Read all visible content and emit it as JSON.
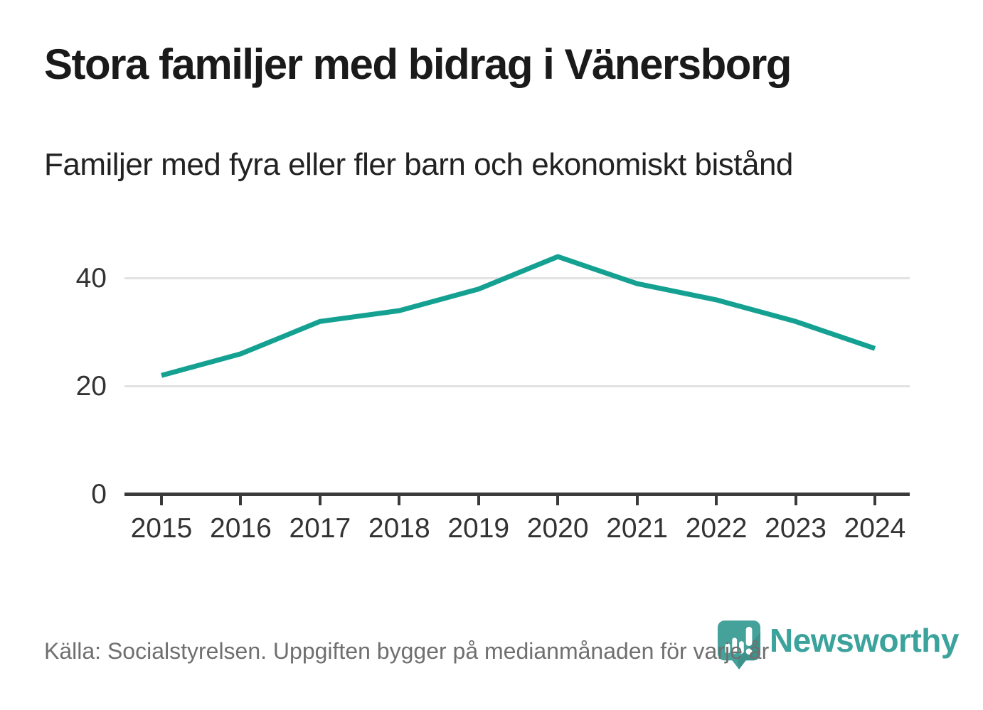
{
  "header": {
    "title": "Stora familjer med bidrag i Vänersborg",
    "subtitle": "Familjer med fyra eller fler barn och ekonomiskt bistånd"
  },
  "chart_data": {
    "type": "line",
    "title": "Stora familjer med bidrag i Vänersborg",
    "subtitle": "Familjer med fyra eller fler barn och ekonomiskt bistånd",
    "categories": [
      "2015",
      "2016",
      "2017",
      "2018",
      "2019",
      "2020",
      "2021",
      "2022",
      "2023",
      "2024"
    ],
    "values": [
      22,
      26,
      32,
      34,
      38,
      44,
      39,
      36,
      32,
      27
    ],
    "xlabel": "",
    "ylabel": "",
    "yticks": [
      0,
      20,
      40
    ],
    "ylim": [
      0,
      46
    ],
    "grid": "horizontal-only",
    "legend": "none",
    "line_color": "#14a192"
  },
  "footer": {
    "source": "Källa: Socialstyrelsen. Uppgiften bygger på medianmånaden för varje år",
    "brand": "Newsworthy"
  },
  "colors": {
    "accent_line": "#14a192",
    "logo_teal": "#45a29a",
    "logo_shadow": "#37857f",
    "grid": "#e2e2e2",
    "axis": "#3a3a3a",
    "title_text": "#1a1a1a",
    "source_text": "#6f6f6f"
  }
}
